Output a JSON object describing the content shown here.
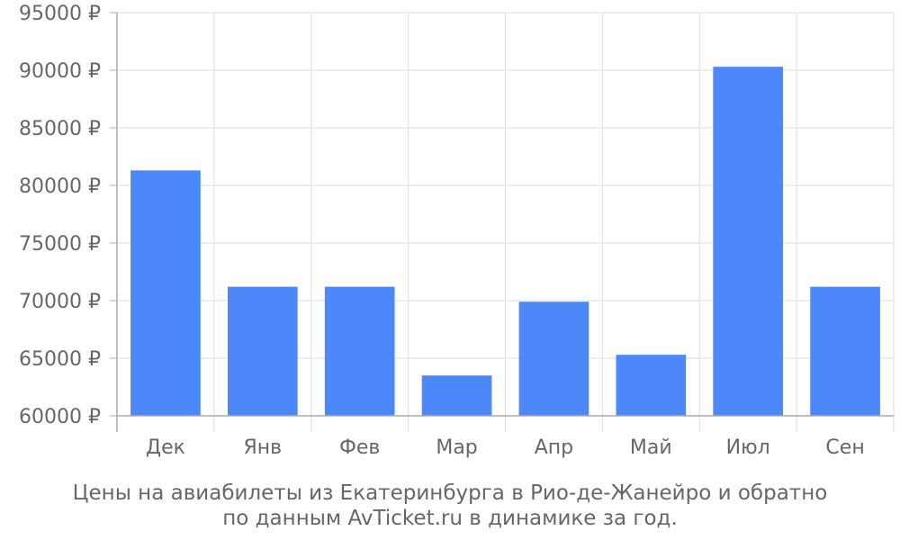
{
  "chart_data": {
    "type": "bar",
    "categories": [
      "Дек",
      "Янв",
      "Фев",
      "Мар",
      "Апр",
      "Май",
      "Июл",
      "Сен"
    ],
    "values": [
      81300,
      71200,
      71200,
      63500,
      69900,
      65300,
      90300,
      71200
    ],
    "ylim": [
      60000,
      95000
    ],
    "yticks": [
      60000,
      65000,
      70000,
      75000,
      80000,
      85000,
      90000,
      95000
    ],
    "ytick_labels": [
      "60000 ₽",
      "65000 ₽",
      "70000 ₽",
      "75000 ₽",
      "80000 ₽",
      "85000 ₽",
      "90000 ₽",
      "95000 ₽"
    ],
    "title": "",
    "xlabel": "",
    "ylabel": "",
    "grid": true,
    "bar_color": "#4d88fa",
    "grid_color": "#dddddd",
    "axis_color": "#aaaaaa",
    "text_color": "#666666"
  },
  "caption": {
    "line1": "Цены на авиабилеты из Екатеринбурга в Рио-де-Жанейро и обратно",
    "line2": "по данным AvTicket.ru в динамике за год."
  }
}
